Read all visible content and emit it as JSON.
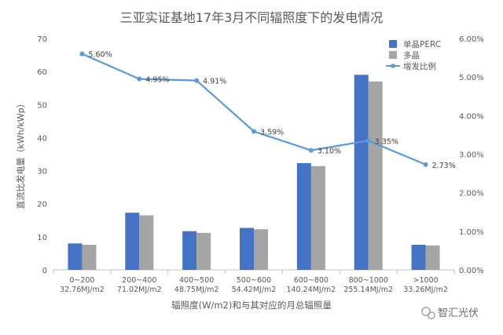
{
  "colors": {
    "mono": "#4472C4",
    "multi": "#A5A5A5",
    "ratio": "#5B9BD5",
    "axis": "#BFBFBF",
    "grid": "#E4E4E4",
    "text": "#595959",
    "title": "#595959"
  },
  "watermark": {
    "text": "智汇光伏",
    "icon": "wechat-icon"
  },
  "chart_data": {
    "type": "bar",
    "title": "三亚实证基地17年3月不同辐照度下的发电情况",
    "xlabel": "辐照度(W/m2)和与其对应的月总辐照量",
    "ylabel": "直流比发电量（kWh/kWp）",
    "ylim": [
      0,
      70
    ],
    "yticks": [
      "0",
      "10",
      "20",
      "30",
      "40",
      "50",
      "60",
      "70"
    ],
    "y2lim": [
      0,
      6
    ],
    "y2ticks": [
      "0.00%",
      "1.00%",
      "2.00%",
      "3.00%",
      "4.00%",
      "5.00%",
      "6.00%"
    ],
    "grid": false,
    "legend_position": "top-right",
    "categories": [
      {
        "line1": "0~200",
        "line2": "32.76MJ/m2"
      },
      {
        "line1": "200~400",
        "line2": "71.02MJ/m2"
      },
      {
        "line1": "400~500",
        "line2": "48.75MJ/m2"
      },
      {
        "line1": "500~600",
        "line2": "54.42MJ/m2"
      },
      {
        "line1": "600~800",
        "line2": "140.24MJ/m2"
      },
      {
        "line1": "800~1000",
        "line2": "255.14MJ/m2"
      },
      {
        "line1": ">1000",
        "line2": "33.26MJ/m2"
      }
    ],
    "series": [
      {
        "name": "单晶PERC",
        "type": "bar",
        "axis": "left",
        "values": [
          8.0,
          17.3,
          11.7,
          12.7,
          32.3,
          59.0,
          7.6
        ]
      },
      {
        "name": "多晶",
        "type": "bar",
        "axis": "left",
        "values": [
          7.6,
          16.5,
          11.2,
          12.3,
          31.4,
          57.0,
          7.4
        ]
      },
      {
        "name": "增发比例",
        "type": "line",
        "axis": "right",
        "values": [
          5.6,
          4.95,
          4.91,
          3.59,
          3.1,
          3.35,
          2.73
        ],
        "labels": [
          "5.60%",
          "4.95%",
          "4.91%",
          "3.59%",
          "3.10%",
          "3.35%",
          "2.73%"
        ]
      }
    ]
  }
}
